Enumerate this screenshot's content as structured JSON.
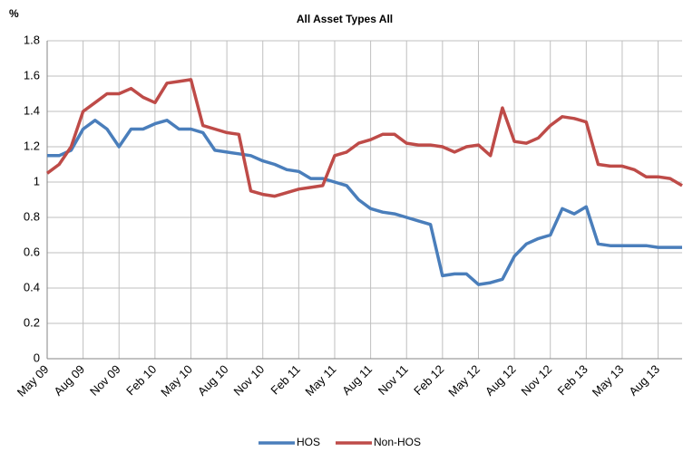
{
  "chart_data": {
    "type": "line",
    "title": "All Asset Types All",
    "y_label": "%",
    "categories": [
      "May 09",
      null,
      null,
      "Aug 09",
      null,
      null,
      "Nov 09",
      null,
      null,
      "Feb 10",
      null,
      null,
      "May 10",
      null,
      null,
      "Aug 10",
      null,
      null,
      "Nov 10",
      null,
      null,
      "Feb 11",
      null,
      null,
      "May 11",
      null,
      null,
      "Aug 11",
      null,
      null,
      "Nov 11",
      null,
      null,
      "Feb 12",
      null,
      null,
      "May 12",
      null,
      null,
      "Aug 12",
      null,
      null,
      "Nov 12",
      null,
      null,
      "Feb 13",
      null,
      null,
      "May 13",
      null,
      null,
      "Aug 13",
      null,
      null
    ],
    "series": [
      {
        "name": "HOS",
        "color": "#4a7ebb",
        "values": [
          1.15,
          1.15,
          1.18,
          1.3,
          1.35,
          1.3,
          1.2,
          1.3,
          1.3,
          1.33,
          1.35,
          1.3,
          1.3,
          1.28,
          1.18,
          1.17,
          1.16,
          1.15,
          1.12,
          1.1,
          1.07,
          1.06,
          1.02,
          1.02,
          1.0,
          0.98,
          0.9,
          0.85,
          0.83,
          0.82,
          0.8,
          0.78,
          0.76,
          0.47,
          0.48,
          0.48,
          0.42,
          0.43,
          0.45,
          0.58,
          0.65,
          0.68,
          0.7,
          0.85,
          0.82,
          0.86,
          0.65,
          0.64,
          0.64,
          0.64,
          0.64,
          0.63,
          0.63,
          0.63
        ]
      },
      {
        "name": "Non-HOS",
        "color": "#be4b48",
        "values": [
          1.05,
          1.1,
          1.2,
          1.4,
          1.45,
          1.5,
          1.5,
          1.53,
          1.48,
          1.45,
          1.56,
          1.57,
          1.58,
          1.32,
          1.3,
          1.28,
          1.27,
          0.95,
          0.93,
          0.92,
          0.94,
          0.96,
          0.97,
          0.98,
          1.15,
          1.17,
          1.22,
          1.24,
          1.27,
          1.27,
          1.22,
          1.21,
          1.21,
          1.2,
          1.17,
          1.2,
          1.21,
          1.15,
          1.42,
          1.23,
          1.22,
          1.25,
          1.32,
          1.37,
          1.36,
          1.34,
          1.1,
          1.09,
          1.09,
          1.07,
          1.03,
          1.03,
          1.02,
          0.98
        ]
      }
    ],
    "ylim": [
      0,
      1.8
    ],
    "yticks": [
      0,
      0.2,
      0.4,
      0.6,
      0.8,
      1,
      1.2,
      1.4,
      1.6,
      1.8
    ],
    "grid": true,
    "legend": "bottom"
  }
}
